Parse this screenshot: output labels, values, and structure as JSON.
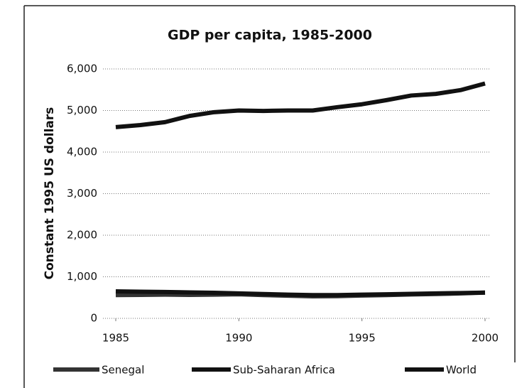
{
  "chart_data": {
    "type": "line",
    "title": "GDP per capita, 1985-2000",
    "y_label": "Constant 1995 US dollars",
    "x": [
      1985,
      1986,
      1987,
      1988,
      1989,
      1990,
      1991,
      1992,
      1993,
      1994,
      1995,
      1996,
      1997,
      1998,
      1999,
      2000
    ],
    "series": [
      {
        "name": "Senegal",
        "color": "#333333",
        "values": [
          560,
          565,
          570,
          565,
          570,
          580,
          560,
          545,
          530,
          535,
          550,
          560,
          575,
          585,
          600,
          620
        ]
      },
      {
        "name": "Sub-Saharan Africa",
        "color": "#111111",
        "values": [
          650,
          640,
          635,
          625,
          615,
          600,
          585,
          570,
          560,
          560,
          570,
          580,
          590,
          600,
          610,
          620
        ]
      },
      {
        "name": "World",
        "color": "#111111",
        "values": [
          4600,
          4650,
          4720,
          4870,
          4960,
          5000,
          4990,
          5000,
          5000,
          5080,
          5150,
          5250,
          5360,
          5400,
          5490,
          5650
        ]
      }
    ],
    "xlim": [
      1985,
      2000
    ],
    "xticks": [
      1985,
      1990,
      1995,
      2000
    ],
    "ylim": [
      0,
      6000
    ],
    "yticks": [
      0,
      {
        "value": 1000,
        "label": "1,000"
      },
      {
        "value": 2000,
        "label": "2,000"
      },
      {
        "value": 3000,
        "label": "3,000"
      },
      {
        "value": 4000,
        "label": "4,000"
      },
      {
        "value": 5000,
        "label": "5,000"
      },
      {
        "value": 6000,
        "label": "6,000"
      }
    ],
    "grid": true,
    "legend": "bottom"
  }
}
